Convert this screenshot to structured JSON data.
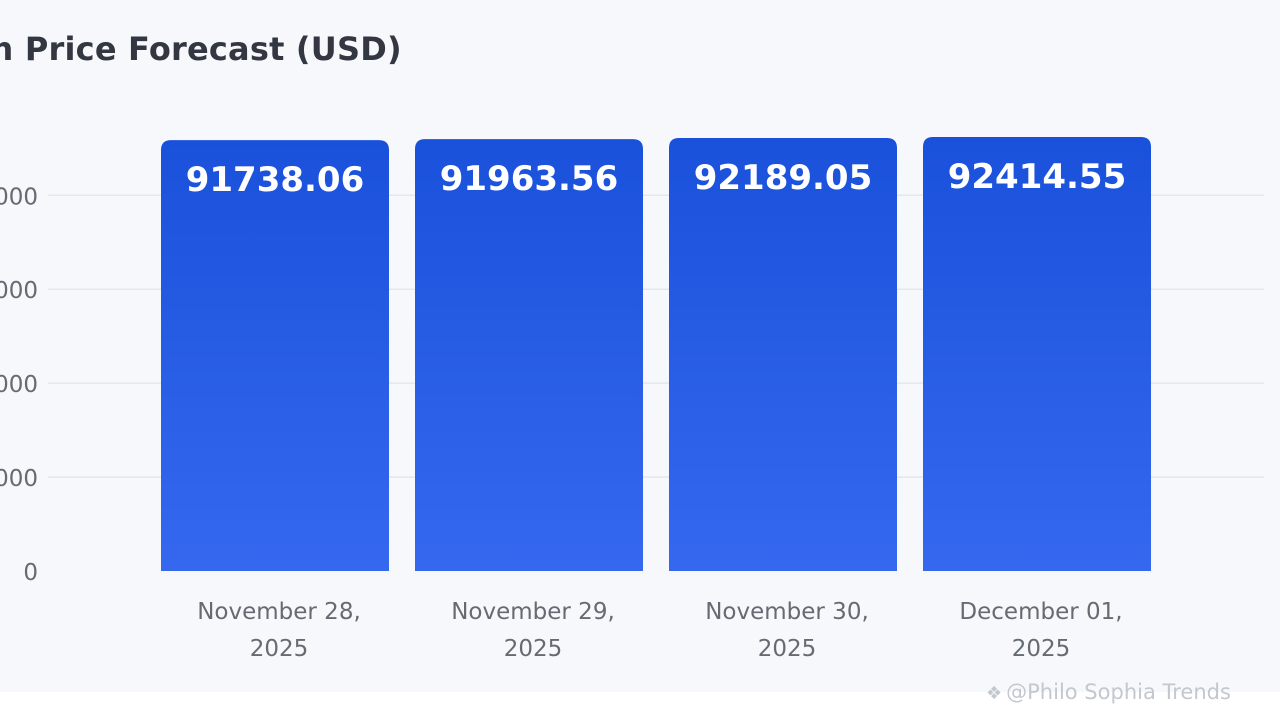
{
  "watermark": {
    "icon": "binance-diamond-icon",
    "text": "@Philo Sophia Trends"
  },
  "chart_data": {
    "type": "bar",
    "title": "coin Price Forecast (USD)",
    "categories": [
      [
        "November 28,",
        "2025"
      ],
      [
        "November 29,",
        "2025"
      ],
      [
        "November 30,",
        "2025"
      ],
      [
        "December 01,",
        "2025"
      ]
    ],
    "values": [
      91738.06,
      91963.56,
      92189.05,
      92414.55
    ],
    "data_labels": [
      "91738.06",
      "91963.56",
      "92189.05",
      "92414.55"
    ],
    "y_ticks": [
      {
        "value": 0,
        "label": "0"
      },
      {
        "value": 20000,
        "label": "000"
      },
      {
        "value": 40000,
        "label": "000"
      },
      {
        "value": 60000,
        "label": "000"
      },
      {
        "value": 80000,
        "label": "000"
      }
    ],
    "ylim": [
      0,
      92414.55
    ],
    "grid": true,
    "colors": {
      "bar_top": "#1a51db",
      "bar_bottom": "#3568ef",
      "grid": "#e4e7ec",
      "tick_text": "#666b73",
      "data_label": "#ffffff"
    }
  }
}
